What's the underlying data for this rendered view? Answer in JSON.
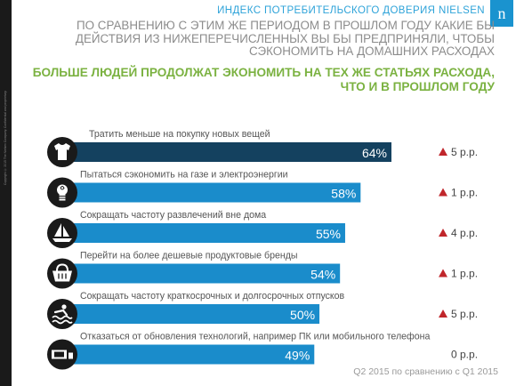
{
  "copyright": "Copyright © 2015 The Nielsen Company. Confidential and proprietary.",
  "header": {
    "brand": "ИНДЕКС ПОТРЕБИТЕЛЬСКОГО ДОВЕРИЯ NIELSEN",
    "logo_letter": "n",
    "question": "ПО СРАВНЕНИЮ С ЭТИМ ЖЕ ПЕРИОДОМ В ПРОШЛОМ ГОДУ КАКИЕ БЫ ДЕЙСТВИЯ ИЗ НИЖЕПЕРЕЧИСЛЕННЫХ ВЫ БЫ ПРЕДПРИНЯЛИ, ЧТОБЫ СЭКОНОМИТЬ НА ДОМАШНИХ РАСХОДАХ",
    "headline": "БОЛЬШЕ ЛЮДЕЙ ПРОДОЛЖАТ ЭКОНОМИТЬ НА ТЕХ ЖЕ СТАТЬЯХ РАСХОДА, ЧТО И В ПРОШЛОМ ГОДУ"
  },
  "colors": {
    "bar_dark": "#14415f",
    "bar": "#1a8ccb",
    "circle": "#1a1a1a",
    "icon": "#ffffff",
    "up_arrow": "#c0262b",
    "label": "#555555",
    "value": "#ffffff"
  },
  "chart_data": {
    "type": "bar",
    "orientation": "horizontal",
    "categories": [
      "Тратить меньше на покупку новых вещей",
      "Пытаться сэкономить на газе и электроэнергии",
      "Сокращать частоту развлечений вне дома",
      "Перейти на более дешевые продуктовые бренды",
      "Сокращать частоту краткосрочных и долгосрочных отпусков",
      "Отказаться от обновления технологий, например ПК или мобильного телефона"
    ],
    "values": [
      64,
      58,
      55,
      54,
      50,
      49
    ],
    "value_labels": [
      "64%",
      "58%",
      "55%",
      "54%",
      "50%",
      "49%"
    ],
    "changes": [
      {
        "direction": "up",
        "text": "5 р.р."
      },
      {
        "direction": "up",
        "text": "1 р.р."
      },
      {
        "direction": "up",
        "text": "4 р.р."
      },
      {
        "direction": "up",
        "text": "1 р.р."
      },
      {
        "direction": "up",
        "text": "5 р.р."
      },
      {
        "direction": "none",
        "text": "0 р.р."
      }
    ],
    "icons": [
      "tshirt-icon",
      "lightbulb-icon",
      "boat-icon",
      "shopping-basket-icon",
      "swimmer-icon",
      "laptop-icon"
    ],
    "footnote": "Q2 2015 по сравнению с Q1 2015"
  }
}
